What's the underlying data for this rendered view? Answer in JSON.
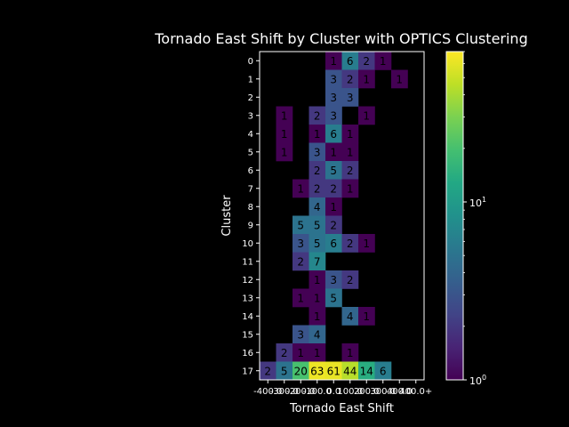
{
  "chart_data": {
    "type": "heatmap",
    "title": "Tornado East Shift by Cluster with OPTICS Clustering",
    "xlabel": "Tornado East Shift",
    "ylabel": "Cluster",
    "x_tick_labels": [
      "-400.0",
      "-300.0",
      "-200.0",
      "-100.0",
      "0.0",
      "100.0",
      "200.0",
      "300.0",
      "400.0",
      "400.0+"
    ],
    "y_tick_labels": [
      "0",
      "1",
      "2",
      "3",
      "4",
      "5",
      "6",
      "7",
      "8",
      "9",
      "10",
      "11",
      "12",
      "13",
      "14",
      "15",
      "16",
      "17"
    ],
    "color_scale": "log",
    "colormap": "viridis",
    "colorbar_range": [
      1,
      70
    ],
    "colorbar_ticks": [
      {
        "base": "10",
        "exp": "0",
        "value": 1
      },
      {
        "base": "10",
        "exp": "1",
        "value": 10
      }
    ],
    "cells": [
      {
        "row": 0,
        "col": 4,
        "value": 1
      },
      {
        "row": 0,
        "col": 5,
        "value": 6
      },
      {
        "row": 0,
        "col": 6,
        "value": 2
      },
      {
        "row": 0,
        "col": 7,
        "value": 1
      },
      {
        "row": 1,
        "col": 4,
        "value": 3
      },
      {
        "row": 1,
        "col": 5,
        "value": 2
      },
      {
        "row": 1,
        "col": 6,
        "value": 1
      },
      {
        "row": 1,
        "col": 8,
        "value": 1
      },
      {
        "row": 2,
        "col": 4,
        "value": 3
      },
      {
        "row": 2,
        "col": 5,
        "value": 3
      },
      {
        "row": 3,
        "col": 1,
        "value": 1
      },
      {
        "row": 3,
        "col": 3,
        "value": 2
      },
      {
        "row": 3,
        "col": 4,
        "value": 3
      },
      {
        "row": 3,
        "col": 6,
        "value": 1
      },
      {
        "row": 4,
        "col": 1,
        "value": 1
      },
      {
        "row": 4,
        "col": 3,
        "value": 1
      },
      {
        "row": 4,
        "col": 4,
        "value": 6
      },
      {
        "row": 4,
        "col": 5,
        "value": 1
      },
      {
        "row": 5,
        "col": 1,
        "value": 1
      },
      {
        "row": 5,
        "col": 3,
        "value": 3
      },
      {
        "row": 5,
        "col": 4,
        "value": 1
      },
      {
        "row": 5,
        "col": 5,
        "value": 1
      },
      {
        "row": 6,
        "col": 3,
        "value": 2
      },
      {
        "row": 6,
        "col": 4,
        "value": 5
      },
      {
        "row": 6,
        "col": 5,
        "value": 2
      },
      {
        "row": 7,
        "col": 2,
        "value": 1
      },
      {
        "row": 7,
        "col": 3,
        "value": 2
      },
      {
        "row": 7,
        "col": 4,
        "value": 2
      },
      {
        "row": 7,
        "col": 5,
        "value": 1
      },
      {
        "row": 8,
        "col": 3,
        "value": 4
      },
      {
        "row": 8,
        "col": 4,
        "value": 1
      },
      {
        "row": 9,
        "col": 2,
        "value": 5
      },
      {
        "row": 9,
        "col": 3,
        "value": 5
      },
      {
        "row": 9,
        "col": 4,
        "value": 2
      },
      {
        "row": 10,
        "col": 2,
        "value": 3
      },
      {
        "row": 10,
        "col": 3,
        "value": 5
      },
      {
        "row": 10,
        "col": 4,
        "value": 6
      },
      {
        "row": 10,
        "col": 5,
        "value": 2
      },
      {
        "row": 10,
        "col": 6,
        "value": 1
      },
      {
        "row": 11,
        "col": 2,
        "value": 2
      },
      {
        "row": 11,
        "col": 3,
        "value": 7
      },
      {
        "row": 12,
        "col": 3,
        "value": 1
      },
      {
        "row": 12,
        "col": 4,
        "value": 3
      },
      {
        "row": 12,
        "col": 5,
        "value": 2
      },
      {
        "row": 13,
        "col": 2,
        "value": 1
      },
      {
        "row": 13,
        "col": 3,
        "value": 1
      },
      {
        "row": 13,
        "col": 4,
        "value": 5
      },
      {
        "row": 14,
        "col": 3,
        "value": 1
      },
      {
        "row": 14,
        "col": 5,
        "value": 4
      },
      {
        "row": 14,
        "col": 6,
        "value": 1
      },
      {
        "row": 15,
        "col": 2,
        "value": 3
      },
      {
        "row": 15,
        "col": 3,
        "value": 4
      },
      {
        "row": 16,
        "col": 1,
        "value": 2
      },
      {
        "row": 16,
        "col": 2,
        "value": 1
      },
      {
        "row": 16,
        "col": 3,
        "value": 1
      },
      {
        "row": 16,
        "col": 5,
        "value": 1
      },
      {
        "row": 17,
        "col": 0,
        "value": 2
      },
      {
        "row": 17,
        "col": 1,
        "value": 5
      },
      {
        "row": 17,
        "col": 2,
        "value": 20
      },
      {
        "row": 17,
        "col": 3,
        "value": 63
      },
      {
        "row": 17,
        "col": 4,
        "value": 61
      },
      {
        "row": 17,
        "col": 5,
        "value": 44
      },
      {
        "row": 17,
        "col": 6,
        "value": 14
      },
      {
        "row": 17,
        "col": 7,
        "value": 6
      }
    ]
  }
}
